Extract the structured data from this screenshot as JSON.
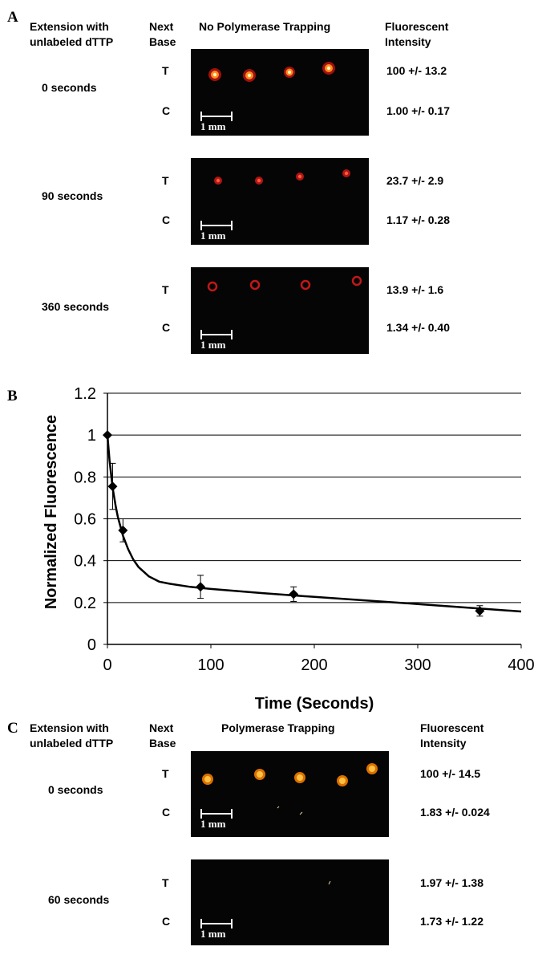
{
  "panel_a": {
    "letter": "A",
    "header_extension": "Extension with\nunlabeled dTTP",
    "header_base": "Next\nBase",
    "header_trapping": "No Polymerase Trapping",
    "header_intensity": "Fluorescent\nIntensity",
    "scale_label": "1 mm",
    "rows": [
      {
        "time": "0 seconds",
        "t_label": "T",
        "c_label": "C",
        "t_value": "100 +/- 13.2",
        "c_value": "1.00 +/- 0.17"
      },
      {
        "time": "90 seconds",
        "t_label": "T",
        "c_label": "C",
        "t_value": "23.7 +/- 2.9",
        "c_value": "1.17 +/- 0.28"
      },
      {
        "time": "360 seconds",
        "t_label": "T",
        "c_label": "C",
        "t_value": "13.9 +/- 1.6",
        "c_value": "1.34 +/- 0.40"
      }
    ]
  },
  "panel_b": {
    "letter": "B"
  },
  "panel_c": {
    "letter": "C",
    "header_extension": "Extension with\nunlabeled dTTP",
    "header_base": "Next\nBase",
    "header_trapping": "Polymerase Trapping",
    "header_intensity": "Fluorescent\nIntensity",
    "scale_label": "1 mm",
    "rows": [
      {
        "time": "0 seconds",
        "t_label": "T",
        "c_label": "C",
        "t_value": "100 +/- 14.5",
        "c_value": "1.83 +/- 0.024"
      },
      {
        "time": "60 seconds",
        "t_label": "T",
        "c_label": "C",
        "t_value": "1.97 +/- 1.38",
        "c_value": "1.73 +/- 1.22"
      }
    ]
  },
  "chart_data": {
    "type": "scatter",
    "title": "",
    "xlabel": "Time (Seconds)",
    "ylabel": "Normalized Fluorescence",
    "xlim": [
      0,
      400
    ],
    "ylim": [
      0,
      1.2
    ],
    "xticks": [
      0,
      100,
      200,
      300,
      400
    ],
    "yticks": [
      0,
      0.2,
      0.4,
      0.6,
      0.8,
      1,
      1.2
    ],
    "ytick_labels": [
      "0",
      "0.2",
      "0.4",
      "0.6",
      "0.8",
      "1",
      "1.2"
    ],
    "grid": "horizontal",
    "marker": "diamond",
    "points": [
      {
        "x": 0,
        "y": 1.0,
        "err": 0.0
      },
      {
        "x": 5,
        "y": 0.755,
        "err": 0.11
      },
      {
        "x": 15,
        "y": 0.545,
        "err": 0.055
      },
      {
        "x": 90,
        "y": 0.275,
        "err": 0.055
      },
      {
        "x": 180,
        "y": 0.24,
        "err": 0.035
      },
      {
        "x": 360,
        "y": 0.16,
        "err": 0.025
      }
    ],
    "fit_curve": {
      "x": [
        0,
        2,
        5,
        8,
        10,
        15,
        20,
        25,
        30,
        40,
        50,
        60,
        80,
        100,
        150,
        200,
        250,
        300,
        350,
        400
      ],
      "y": [
        1.0,
        0.88,
        0.75,
        0.66,
        0.61,
        0.52,
        0.455,
        0.405,
        0.37,
        0.325,
        0.3,
        0.29,
        0.275,
        0.265,
        0.245,
        0.227,
        0.21,
        0.193,
        0.175,
        0.157
      ]
    }
  }
}
